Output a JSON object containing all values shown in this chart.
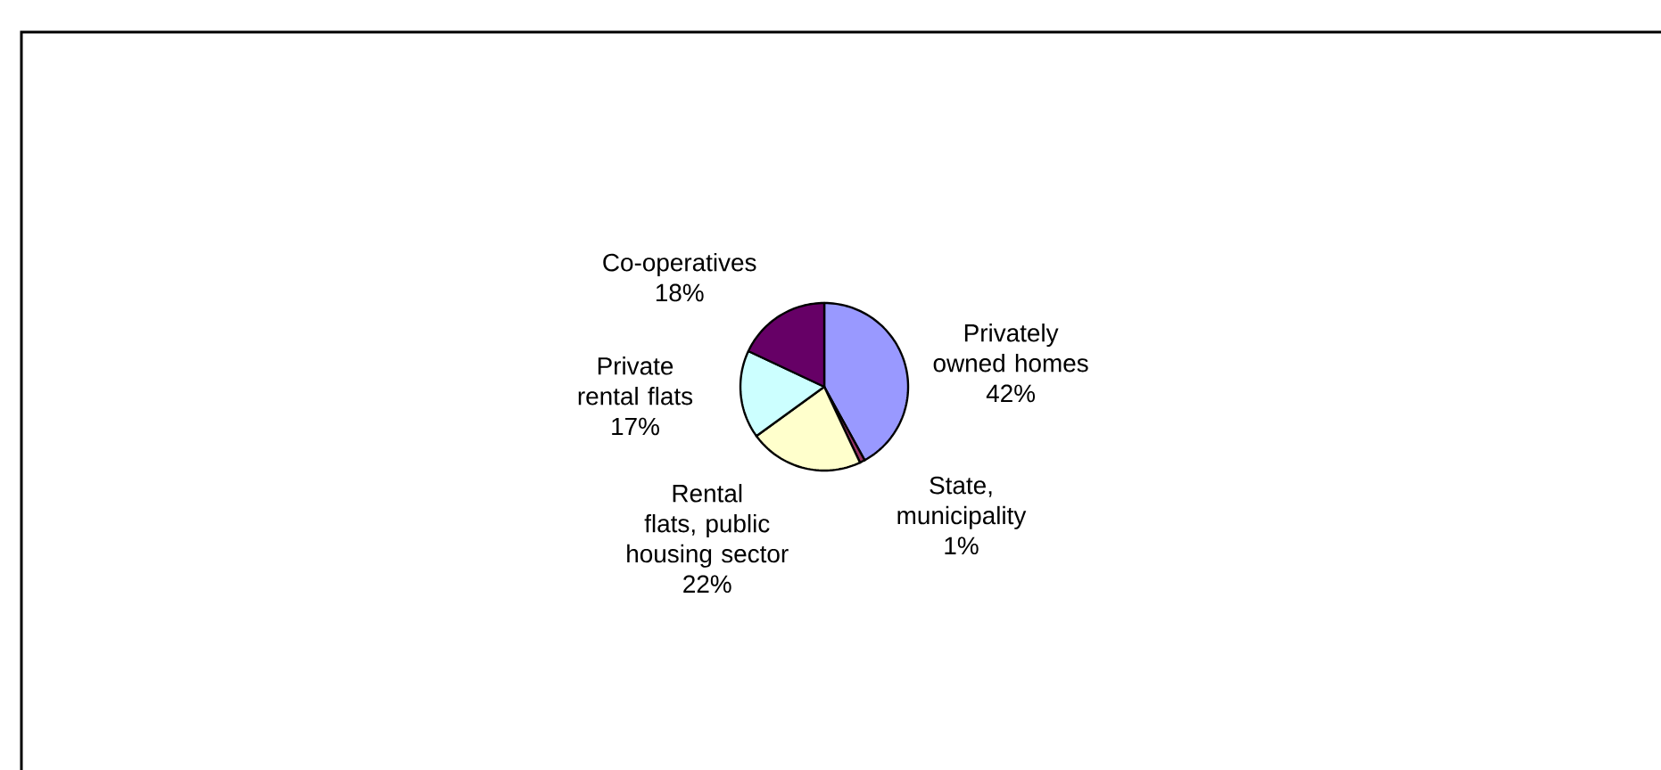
{
  "chart_data": {
    "type": "pie",
    "categories": [
      "Privately owned homes",
      "State, municipality",
      "Rental flats, public housing sector",
      "Private rental flats",
      "Co-operatives"
    ],
    "values": [
      42,
      1,
      22,
      17,
      18
    ],
    "value_labels": [
      "42%",
      "1%",
      "22%",
      "17%",
      "18%"
    ],
    "colors": [
      "#9999ff",
      "#993366",
      "#ffffcc",
      "#ccffff",
      "#660066"
    ]
  }
}
